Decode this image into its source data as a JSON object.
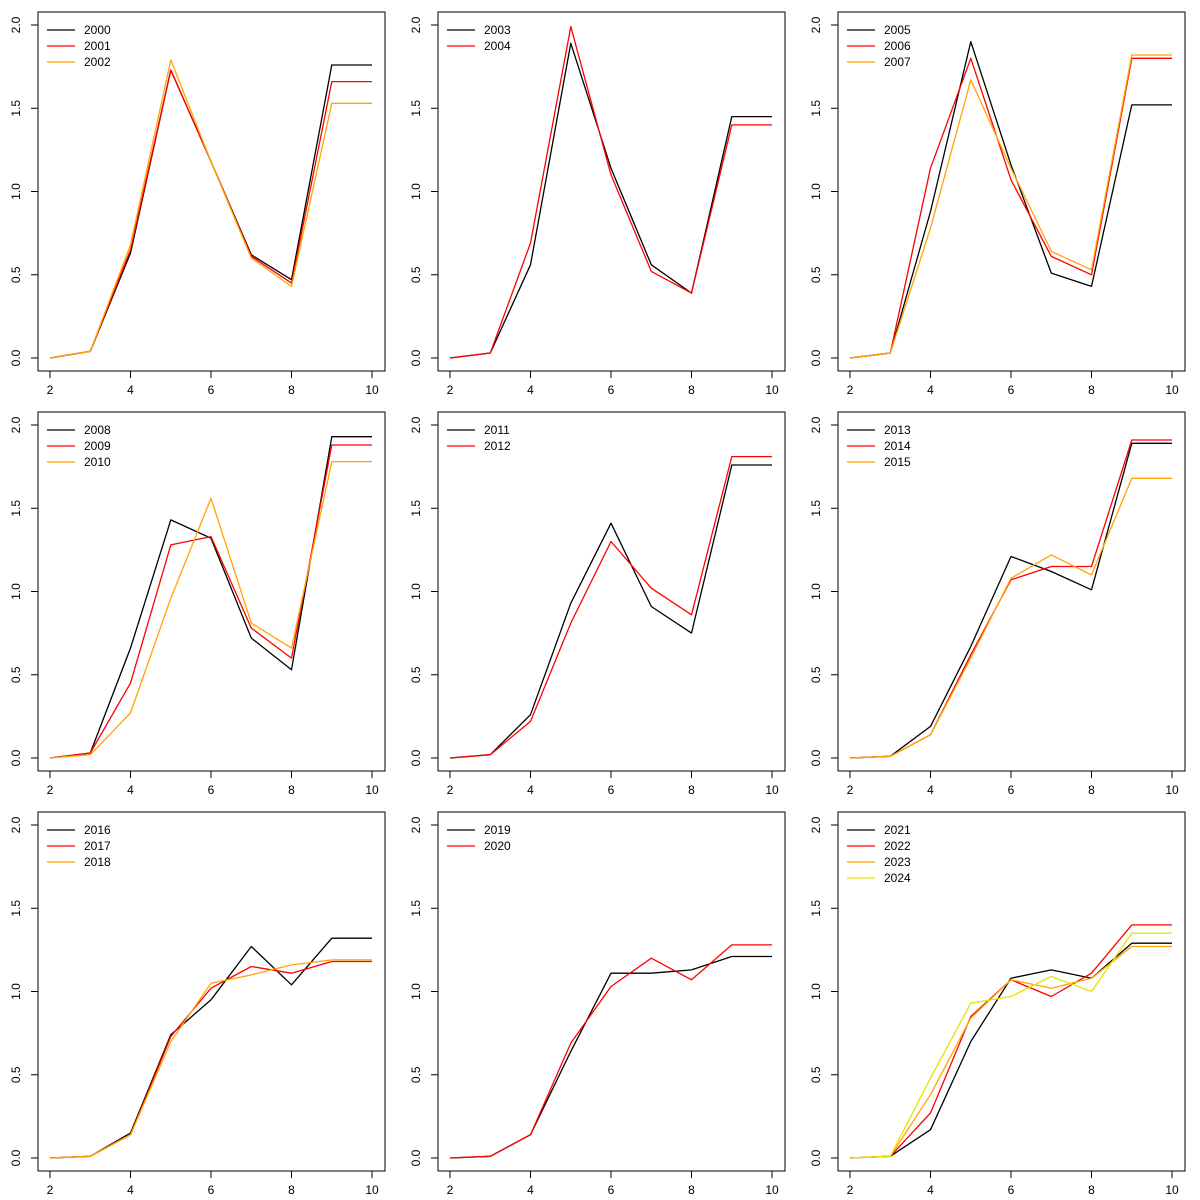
{
  "figure": {
    "background": "#ffffff"
  },
  "colors": {
    "black": "#000000",
    "red": "#ff0000",
    "orange": "#ffa500",
    "yellow": "#e5e500"
  },
  "chart_data": [
    {
      "type": "line",
      "xlim": [
        2,
        10
      ],
      "ylim": [
        0,
        2
      ],
      "xticks": [
        "2",
        "4",
        "6",
        "8",
        "10"
      ],
      "yticks": [
        "0.0",
        "0.5",
        "1.0",
        "1.5",
        "2.0"
      ],
      "legend_position": "top-left",
      "x": [
        2,
        3,
        4,
        5,
        6,
        7,
        8,
        9,
        10
      ],
      "series": [
        {
          "name": "2000",
          "color": "#000000",
          "values": [
            0,
            0.04,
            0.63,
            1.73,
            1.18,
            0.62,
            0.47,
            1.76,
            1.76
          ]
        },
        {
          "name": "2001",
          "color": "#ff0000",
          "values": [
            0,
            0.04,
            0.65,
            1.73,
            1.18,
            0.61,
            0.45,
            1.66,
            1.66
          ]
        },
        {
          "name": "2002",
          "color": "#ffa500",
          "values": [
            0,
            0.04,
            0.68,
            1.79,
            1.18,
            0.6,
            0.43,
            1.53,
            1.53
          ]
        }
      ]
    },
    {
      "type": "line",
      "xlim": [
        2,
        10
      ],
      "ylim": [
        0,
        2
      ],
      "xticks": [
        "2",
        "4",
        "6",
        "8",
        "10"
      ],
      "yticks": [
        "0.0",
        "0.5",
        "1.0",
        "1.5",
        "2.0"
      ],
      "legend_position": "top-left",
      "x": [
        2,
        3,
        4,
        5,
        6,
        7,
        8,
        9,
        10
      ],
      "series": [
        {
          "name": "2003",
          "color": "#000000",
          "values": [
            0,
            0.03,
            0.56,
            1.89,
            1.14,
            0.56,
            0.39,
            1.45,
            1.45
          ]
        },
        {
          "name": "2004",
          "color": "#ff0000",
          "values": [
            0,
            0.03,
            0.69,
            1.99,
            1.1,
            0.52,
            0.39,
            1.4,
            1.4
          ]
        }
      ]
    },
    {
      "type": "line",
      "xlim": [
        2,
        10
      ],
      "ylim": [
        0,
        2
      ],
      "xticks": [
        "2",
        "4",
        "6",
        "8",
        "10"
      ],
      "yticks": [
        "0.0",
        "0.5",
        "1.0",
        "1.5",
        "2.0"
      ],
      "legend_position": "top-left",
      "x": [
        2,
        3,
        4,
        5,
        6,
        7,
        8,
        9,
        10
      ],
      "series": [
        {
          "name": "2005",
          "color": "#000000",
          "values": [
            0,
            0.03,
            0.88,
            1.9,
            1.16,
            0.51,
            0.43,
            1.52,
            1.52
          ]
        },
        {
          "name": "2006",
          "color": "#ff0000",
          "values": [
            0,
            0.03,
            1.14,
            1.8,
            1.07,
            0.61,
            0.5,
            1.8,
            1.8
          ]
        },
        {
          "name": "2007",
          "color": "#ffa500",
          "values": [
            0,
            0.03,
            0.78,
            1.67,
            1.14,
            0.64,
            0.53,
            1.82,
            1.82
          ]
        }
      ]
    },
    {
      "type": "line",
      "xlim": [
        2,
        10
      ],
      "ylim": [
        0,
        2
      ],
      "xticks": [
        "2",
        "4",
        "6",
        "8",
        "10"
      ],
      "yticks": [
        "0.0",
        "0.5",
        "1.0",
        "1.5",
        "2.0"
      ],
      "legend_position": "top-left",
      "x": [
        2,
        3,
        4,
        5,
        6,
        7,
        8,
        9,
        10
      ],
      "series": [
        {
          "name": "2008",
          "color": "#000000",
          "values": [
            0,
            0.03,
            0.66,
            1.43,
            1.32,
            0.72,
            0.53,
            1.93,
            1.93
          ]
        },
        {
          "name": "2009",
          "color": "#ff0000",
          "values": [
            0,
            0.03,
            0.45,
            1.28,
            1.33,
            0.78,
            0.6,
            1.88,
            1.88
          ]
        },
        {
          "name": "2010",
          "color": "#ffa500",
          "values": [
            0,
            0.02,
            0.27,
            0.96,
            1.56,
            0.81,
            0.66,
            1.78,
            1.78
          ]
        }
      ]
    },
    {
      "type": "line",
      "xlim": [
        2,
        10
      ],
      "ylim": [
        0,
        2
      ],
      "xticks": [
        "2",
        "4",
        "6",
        "8",
        "10"
      ],
      "yticks": [
        "0.0",
        "0.5",
        "1.0",
        "1.5",
        "2.0"
      ],
      "legend_position": "top-left",
      "x": [
        2,
        3,
        4,
        5,
        6,
        7,
        8,
        9,
        10
      ],
      "series": [
        {
          "name": "2011",
          "color": "#000000",
          "values": [
            0,
            0.02,
            0.26,
            0.93,
            1.41,
            0.91,
            0.75,
            1.76,
            1.76
          ]
        },
        {
          "name": "2012",
          "color": "#ff0000",
          "values": [
            0,
            0.02,
            0.22,
            0.81,
            1.3,
            1.02,
            0.86,
            1.81,
            1.81
          ]
        }
      ]
    },
    {
      "type": "line",
      "xlim": [
        2,
        10
      ],
      "ylim": [
        0,
        2
      ],
      "xticks": [
        "2",
        "4",
        "6",
        "8",
        "10"
      ],
      "yticks": [
        "0.0",
        "0.5",
        "1.0",
        "1.5",
        "2.0"
      ],
      "legend_position": "top-left",
      "x": [
        2,
        3,
        4,
        5,
        6,
        7,
        8,
        9,
        10
      ],
      "series": [
        {
          "name": "2013",
          "color": "#000000",
          "values": [
            0,
            0.01,
            0.19,
            0.67,
            1.21,
            1.12,
            1.01,
            1.89,
            1.89
          ]
        },
        {
          "name": "2014",
          "color": "#ff0000",
          "values": [
            0,
            0.01,
            0.14,
            0.62,
            1.07,
            1.15,
            1.15,
            1.91,
            1.91
          ]
        },
        {
          "name": "2015",
          "color": "#ffa500",
          "values": [
            0,
            0.01,
            0.14,
            0.6,
            1.08,
            1.22,
            1.1,
            1.68,
            1.68
          ]
        }
      ]
    },
    {
      "type": "line",
      "xlim": [
        2,
        10
      ],
      "ylim": [
        0,
        2
      ],
      "xticks": [
        "2",
        "4",
        "6",
        "8",
        "10"
      ],
      "yticks": [
        "0.0",
        "0.5",
        "1.0",
        "1.5",
        "2.0"
      ],
      "legend_position": "top-left",
      "x": [
        2,
        3,
        4,
        5,
        6,
        7,
        8,
        9,
        10
      ],
      "series": [
        {
          "name": "2016",
          "color": "#000000",
          "values": [
            0,
            0.01,
            0.15,
            0.74,
            0.95,
            1.27,
            1.04,
            1.32,
            1.32
          ]
        },
        {
          "name": "2017",
          "color": "#ff0000",
          "values": [
            0,
            0.01,
            0.14,
            0.73,
            1.02,
            1.15,
            1.11,
            1.18,
            1.18
          ]
        },
        {
          "name": "2018",
          "color": "#ffa500",
          "values": [
            0,
            0.01,
            0.14,
            0.7,
            1.05,
            1.1,
            1.16,
            1.19,
            1.19
          ]
        }
      ]
    },
    {
      "type": "line",
      "xlim": [
        2,
        10
      ],
      "ylim": [
        0,
        2
      ],
      "xticks": [
        "2",
        "4",
        "6",
        "8",
        "10"
      ],
      "yticks": [
        "0.0",
        "0.5",
        "1.0",
        "1.5",
        "2.0"
      ],
      "legend_position": "top-left",
      "x": [
        2,
        3,
        4,
        5,
        6,
        7,
        8,
        9,
        10
      ],
      "series": [
        {
          "name": "2019",
          "color": "#000000",
          "values": [
            0,
            0.01,
            0.14,
            0.64,
            1.11,
            1.11,
            1.13,
            1.21,
            1.21
          ]
        },
        {
          "name": "2020",
          "color": "#ff0000",
          "values": [
            0,
            0.01,
            0.14,
            0.69,
            1.03,
            1.2,
            1.07,
            1.28,
            1.28
          ]
        }
      ]
    },
    {
      "type": "line",
      "xlim": [
        2,
        10
      ],
      "ylim": [
        0,
        2
      ],
      "xticks": [
        "2",
        "4",
        "6",
        "8",
        "10"
      ],
      "yticks": [
        "0.0",
        "0.5",
        "1.0",
        "1.5",
        "2.0"
      ],
      "legend_position": "top-left",
      "x": [
        2,
        3,
        4,
        5,
        6,
        7,
        8,
        9,
        10
      ],
      "series": [
        {
          "name": "2021",
          "color": "#000000",
          "values": [
            0,
            0.01,
            0.17,
            0.7,
            1.08,
            1.13,
            1.08,
            1.29,
            1.29
          ]
        },
        {
          "name": "2022",
          "color": "#ff0000",
          "values": [
            0,
            0.01,
            0.27,
            0.85,
            1.07,
            0.97,
            1.11,
            1.4,
            1.4
          ]
        },
        {
          "name": "2023",
          "color": "#ffa500",
          "values": [
            0,
            0.01,
            0.38,
            0.84,
            1.07,
            1.02,
            1.08,
            1.27,
            1.27
          ]
        },
        {
          "name": "2024",
          "color": "#e5e500",
          "values": [
            0,
            0.01,
            0.48,
            0.93,
            0.97,
            1.09,
            1.0,
            1.35,
            1.35
          ]
        }
      ]
    }
  ]
}
